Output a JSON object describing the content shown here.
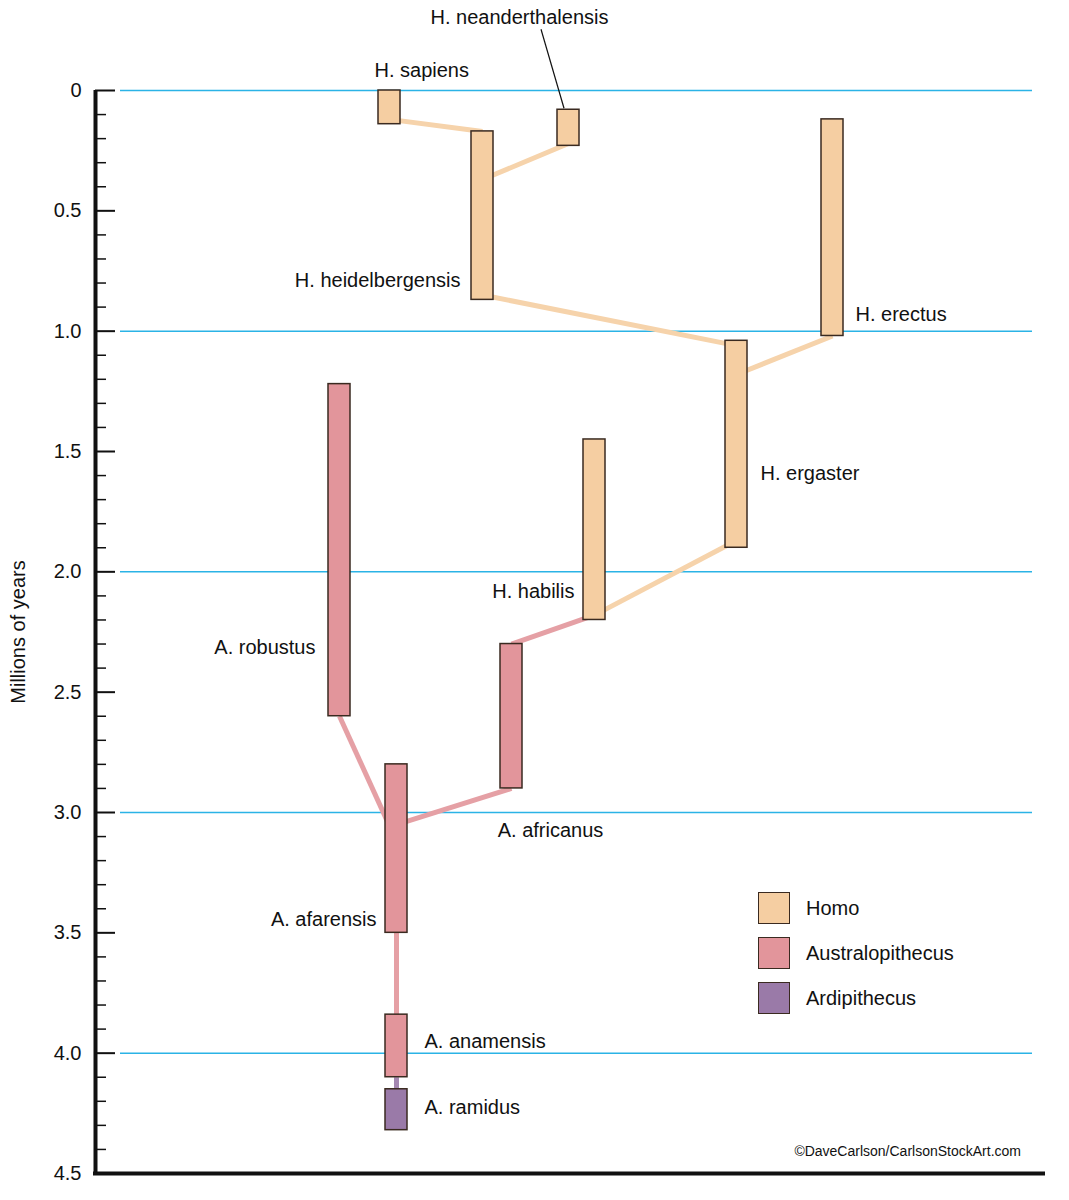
{
  "chart_data": {
    "type": "range",
    "ylabel": "Millions of years",
    "ylim": [
      0,
      4.5
    ],
    "yticks": [
      0,
      0.5,
      {
        "value": 1,
        "label": "1.0"
      },
      1.5,
      {
        "value": 2,
        "label": "2.0"
      },
      2.5,
      {
        "value": 3,
        "label": "3.0"
      },
      3.5,
      {
        "value": 4,
        "label": "4.0"
      },
      4.5
    ],
    "grid": true,
    "legend": "bottom-right",
    "series": [
      {
        "name": "Homo",
        "color": "#f5cea2"
      },
      {
        "name": "Australopithecus",
        "color": "#e2959b"
      },
      {
        "name": "Ardipithecus",
        "color": "#9a7aa8"
      }
    ],
    "species": [
      {
        "name": "H. sapiens",
        "genus": "Homo",
        "start": 0,
        "end": 0.14
      },
      {
        "name": "H. neanderthalensis",
        "genus": "Homo",
        "start": 0.08,
        "end": 0.23
      },
      {
        "name": "H. heidelbergensis",
        "genus": "Homo",
        "start": 0.17,
        "end": 0.87
      },
      {
        "name": "H. erectus",
        "genus": "Homo",
        "start": 0.12,
        "end": 1.02
      },
      {
        "name": "H. ergaster",
        "genus": "Homo",
        "start": 1.04,
        "end": 1.9
      },
      {
        "name": "H. habilis",
        "genus": "Homo",
        "start": 1.45,
        "end": 2.2
      },
      {
        "name": "A. robustus",
        "genus": "Australopithecus",
        "start": 1.22,
        "end": 2.6
      },
      {
        "name": "A. africanus",
        "genus": "Australopithecus",
        "start": 2.3,
        "end": 2.9
      },
      {
        "name": "A. afarensis",
        "genus": "Australopithecus",
        "start": 2.8,
        "end": 3.5
      },
      {
        "name": "A. anamensis",
        "genus": "Australopithecus",
        "start": 3.84,
        "end": 4.1
      },
      {
        "name": "A. ramidus",
        "genus": "Ardipithecus",
        "start": 4.15,
        "end": 4.32
      }
    ],
    "links": [
      {
        "from": "H. heidelbergensis",
        "to": "H. sapiens",
        "from_time": 0.17,
        "to_time": 0.12
      },
      {
        "from": "H. heidelbergensis",
        "to": "H. neanderthalensis",
        "from_time": 0.37,
        "to_time": 0.22
      },
      {
        "from": "H. ergaster",
        "to": "H. heidelbergensis",
        "from_time": 1.06,
        "to_time": 0.85
      },
      {
        "from": "H. ergaster",
        "to": "H. erectus",
        "from_time": 1.18,
        "to_time": 1.02
      },
      {
        "from": "H. habilis",
        "to": "H. ergaster",
        "from_time": 2.18,
        "to_time": 1.87
      },
      {
        "from": "A. africanus",
        "to": "H. habilis",
        "from_time": 2.3,
        "to_time": 2.18
      },
      {
        "from": "A. afarensis",
        "to": "A. africanus",
        "from_time": 3.05,
        "to_time": 2.9
      },
      {
        "from": "A. afarensis",
        "to": "A. robustus",
        "from_time": 3.12,
        "to_time": 2.6
      },
      {
        "from": "A. anamensis",
        "to": "A. afarensis",
        "from_time": 3.84,
        "to_time": 3.5
      },
      {
        "from": "A. ramidus",
        "to": "A. anamensis",
        "from_time": 4.15,
        "to_time": 4.1
      }
    ],
    "credit": "©DaveCarlson/CarlsonStockArt.com"
  }
}
